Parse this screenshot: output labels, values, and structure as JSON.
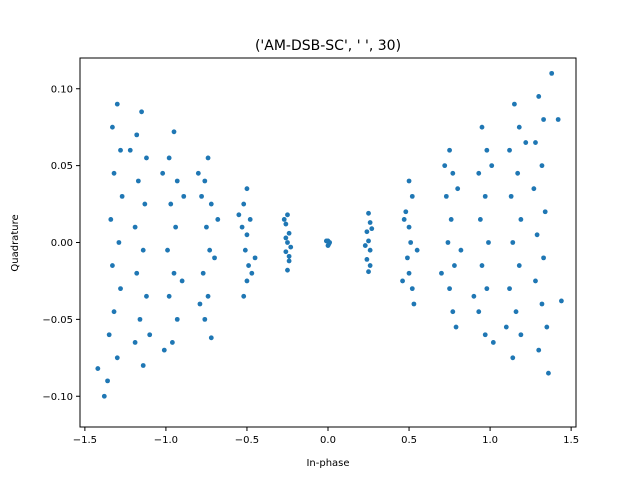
{
  "chart_data": {
    "type": "scatter",
    "title": "('AM-DSB-SC', '  ', 30)",
    "xlabel": "In-phase",
    "ylabel": "Quadrature",
    "xlim": [
      -1.53,
      1.53
    ],
    "ylim": [
      -0.12,
      0.12
    ],
    "xticks": [
      -1.5,
      -1.0,
      -0.5,
      0.0,
      0.5,
      1.0,
      1.5
    ],
    "xtick_labels": [
      "−1.5",
      "−1.0",
      "−0.5",
      "0.0",
      "0.5",
      "1.0",
      "1.5"
    ],
    "yticks": [
      -0.1,
      -0.05,
      0.0,
      0.05,
      0.1
    ],
    "ytick_labels": [
      "−0.10",
      "−0.05",
      "0.00",
      "0.05",
      "0.10"
    ],
    "grid": false,
    "color": "#1f77b4",
    "series": [
      {
        "points": [
          [
            0.0,
            0.001
          ],
          [
            0.0,
            -0.002
          ],
          [
            0.01,
            0.0
          ],
          [
            -0.01,
            0.001
          ],
          [
            0.005,
            -0.001
          ],
          [
            -0.25,
            0.018
          ],
          [
            -0.26,
            0.012
          ],
          [
            -0.24,
            0.006
          ],
          [
            -0.25,
            0.0
          ],
          [
            -0.26,
            -0.006
          ],
          [
            -0.24,
            -0.012
          ],
          [
            -0.25,
            -0.018
          ],
          [
            -0.27,
            0.015
          ],
          [
            -0.23,
            -0.003
          ],
          [
            -0.26,
            0.003
          ],
          [
            -0.24,
            -0.009
          ],
          [
            0.25,
            0.019
          ],
          [
            0.26,
            0.013
          ],
          [
            0.24,
            0.007
          ],
          [
            0.25,
            0.001
          ],
          [
            0.26,
            -0.005
          ],
          [
            0.24,
            -0.011
          ],
          [
            0.25,
            -0.019
          ],
          [
            0.27,
            0.009
          ],
          [
            0.23,
            -0.002
          ],
          [
            0.26,
            -0.015
          ],
          [
            -0.5,
            0.035
          ],
          [
            -0.52,
            0.025
          ],
          [
            -0.48,
            0.015
          ],
          [
            -0.5,
            0.005
          ],
          [
            -0.51,
            -0.005
          ],
          [
            -0.49,
            -0.015
          ],
          [
            -0.5,
            -0.025
          ],
          [
            -0.52,
            -0.035
          ],
          [
            -0.53,
            0.01
          ],
          [
            -0.47,
            -0.02
          ],
          [
            -0.55,
            0.018
          ],
          [
            -0.45,
            -0.01
          ],
          [
            0.5,
            0.04
          ],
          [
            0.52,
            0.03
          ],
          [
            0.48,
            0.02
          ],
          [
            0.5,
            0.01
          ],
          [
            0.51,
            0.0
          ],
          [
            0.49,
            -0.01
          ],
          [
            0.5,
            -0.02
          ],
          [
            0.52,
            -0.03
          ],
          [
            0.53,
            -0.04
          ],
          [
            0.47,
            0.015
          ],
          [
            0.55,
            -0.005
          ],
          [
            0.46,
            -0.025
          ],
          [
            -0.74,
            0.055
          ],
          [
            -0.76,
            0.04
          ],
          [
            -0.72,
            0.025
          ],
          [
            -0.75,
            0.01
          ],
          [
            -0.73,
            -0.005
          ],
          [
            -0.77,
            -0.02
          ],
          [
            -0.74,
            -0.035
          ],
          [
            -0.76,
            -0.05
          ],
          [
            -0.78,
            0.03
          ],
          [
            -0.7,
            -0.01
          ],
          [
            -0.8,
            0.045
          ],
          [
            -0.68,
            0.015
          ],
          [
            -0.72,
            -0.062
          ],
          [
            -0.79,
            -0.04
          ],
          [
            0.75,
            0.06
          ],
          [
            0.77,
            0.045
          ],
          [
            0.73,
            0.03
          ],
          [
            0.76,
            0.015
          ],
          [
            0.74,
            0.0
          ],
          [
            0.78,
            -0.015
          ],
          [
            0.75,
            -0.03
          ],
          [
            0.77,
            -0.045
          ],
          [
            0.8,
            0.035
          ],
          [
            0.7,
            -0.02
          ],
          [
            0.72,
            0.05
          ],
          [
            0.82,
            -0.005
          ],
          [
            0.79,
            -0.055
          ],
          [
            -0.95,
            0.072
          ],
          [
            -0.98,
            0.055
          ],
          [
            -0.93,
            0.04
          ],
          [
            -0.97,
            0.025
          ],
          [
            -0.94,
            0.01
          ],
          [
            -0.99,
            -0.005
          ],
          [
            -0.95,
            -0.02
          ],
          [
            -0.98,
            -0.035
          ],
          [
            -0.93,
            -0.05
          ],
          [
            -0.96,
            -0.065
          ],
          [
            -1.02,
            0.045
          ],
          [
            -0.9,
            -0.025
          ],
          [
            -1.01,
            -0.07
          ],
          [
            -0.89,
            0.03
          ],
          [
            0.95,
            0.075
          ],
          [
            0.98,
            0.06
          ],
          [
            0.93,
            0.045
          ],
          [
            0.97,
            0.03
          ],
          [
            0.94,
            0.015
          ],
          [
            0.99,
            0.0
          ],
          [
            0.95,
            -0.015
          ],
          [
            0.98,
            -0.03
          ],
          [
            0.93,
            -0.045
          ],
          [
            0.97,
            -0.06
          ],
          [
            1.01,
            0.05
          ],
          [
            0.9,
            -0.035
          ],
          [
            1.02,
            -0.065
          ],
          [
            -1.15,
            0.085
          ],
          [
            -1.18,
            0.07
          ],
          [
            -1.12,
            0.055
          ],
          [
            -1.17,
            0.04
          ],
          [
            -1.13,
            0.025
          ],
          [
            -1.19,
            0.01
          ],
          [
            -1.14,
            -0.005
          ],
          [
            -1.18,
            -0.02
          ],
          [
            -1.12,
            -0.035
          ],
          [
            -1.16,
            -0.05
          ],
          [
            -1.19,
            -0.065
          ],
          [
            -1.14,
            -0.08
          ],
          [
            -1.22,
            0.06
          ],
          [
            -1.1,
            -0.06
          ],
          [
            1.15,
            0.09
          ],
          [
            1.18,
            0.075
          ],
          [
            1.12,
            0.06
          ],
          [
            1.17,
            0.045
          ],
          [
            1.13,
            0.03
          ],
          [
            1.19,
            0.015
          ],
          [
            1.14,
            0.0
          ],
          [
            1.18,
            -0.015
          ],
          [
            1.12,
            -0.03
          ],
          [
            1.16,
            -0.045
          ],
          [
            1.19,
            -0.06
          ],
          [
            1.14,
            -0.075
          ],
          [
            1.22,
            0.065
          ],
          [
            1.1,
            -0.055
          ],
          [
            -1.3,
            0.09
          ],
          [
            -1.33,
            0.075
          ],
          [
            -1.28,
            0.06
          ],
          [
            -1.32,
            0.045
          ],
          [
            -1.27,
            0.03
          ],
          [
            -1.34,
            0.015
          ],
          [
            -1.29,
            0.0
          ],
          [
            -1.33,
            -0.015
          ],
          [
            -1.28,
            -0.03
          ],
          [
            -1.32,
            -0.045
          ],
          [
            -1.35,
            -0.06
          ],
          [
            -1.3,
            -0.075
          ],
          [
            -1.36,
            -0.09
          ],
          [
            -1.38,
            -0.1
          ],
          [
            -1.42,
            -0.082
          ],
          [
            1.3,
            0.095
          ],
          [
            1.33,
            0.08
          ],
          [
            1.28,
            0.065
          ],
          [
            1.32,
            0.05
          ],
          [
            1.27,
            0.035
          ],
          [
            1.34,
            0.02
          ],
          [
            1.29,
            0.005
          ],
          [
            1.33,
            -0.01
          ],
          [
            1.28,
            -0.025
          ],
          [
            1.32,
            -0.04
          ],
          [
            1.35,
            -0.055
          ],
          [
            1.3,
            -0.07
          ],
          [
            1.36,
            -0.085
          ],
          [
            1.38,
            0.11
          ],
          [
            1.42,
            0.08
          ],
          [
            1.44,
            -0.038
          ]
        ]
      }
    ]
  }
}
